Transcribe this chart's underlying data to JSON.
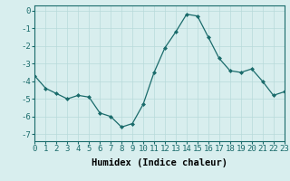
{
  "x": [
    0,
    1,
    2,
    3,
    4,
    5,
    6,
    7,
    8,
    9,
    10,
    11,
    12,
    13,
    14,
    15,
    16,
    17,
    18,
    19,
    20,
    21,
    22,
    23
  ],
  "y": [
    -3.7,
    -4.4,
    -4.7,
    -5.0,
    -4.8,
    -4.9,
    -5.8,
    -6.0,
    -6.6,
    -6.4,
    -5.3,
    -3.5,
    -2.1,
    -1.2,
    -0.2,
    -0.3,
    -1.5,
    -2.7,
    -3.4,
    -3.5,
    -3.3,
    -4.0,
    -4.8,
    -4.6
  ],
  "line_color": "#1a6b6b",
  "marker": "D",
  "marker_size": 2,
  "xlabel": "Humidex (Indice chaleur)",
  "xlim": [
    0,
    23
  ],
  "ylim": [
    -7.4,
    0.3
  ],
  "yticks": [
    0,
    -1,
    -2,
    -3,
    -4,
    -5,
    -6,
    -7
  ],
  "ytick_labels": [
    "0",
    "-1",
    "-2",
    "-3",
    "-4",
    "-5",
    "-6",
    "-7"
  ],
  "xticks": [
    0,
    1,
    2,
    3,
    4,
    5,
    6,
    7,
    8,
    9,
    10,
    11,
    12,
    13,
    14,
    15,
    16,
    17,
    18,
    19,
    20,
    21,
    22,
    23
  ],
  "grid_color": "#b8dada",
  "bg_color": "#d8eeee",
  "tick_fontsize": 6.5,
  "xlabel_fontsize": 7.5,
  "line_width": 0.9
}
